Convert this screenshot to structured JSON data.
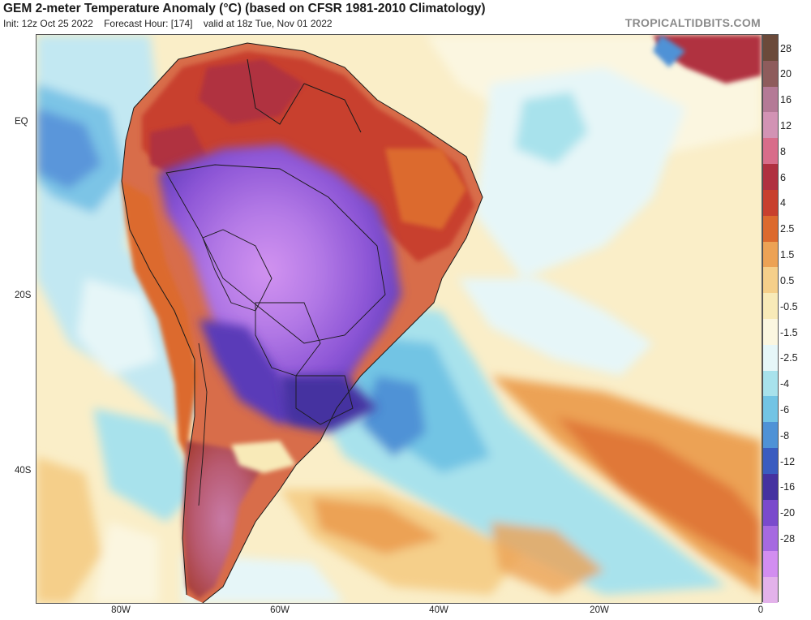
{
  "header": {
    "title": "GEM 2-meter Temperature Anomaly (°C) (based on CFSR 1981-2010 Climatology)",
    "init": "Init: 12z Oct 25 2022",
    "forecast_hour": "Forecast Hour: [174]",
    "valid": "valid at 18z Tue, Nov 01 2022",
    "credit": "TROPICALTIDBITS.COM"
  },
  "map": {
    "lat_labels": [
      "EQ",
      "20S",
      "40S"
    ],
    "lon_labels": [
      "80W",
      "60W",
      "40W",
      "20W",
      "0"
    ]
  },
  "colorbar": {
    "labels": [
      "28",
      "20",
      "16",
      "12",
      "8",
      "6",
      "4",
      "2.5",
      "1.5",
      "0.5",
      "-0.5",
      "-1.5",
      "-2.5",
      "-4",
      "-6",
      "-8",
      "-12",
      "-16",
      "-20",
      "-28"
    ],
    "colors": [
      "#6b4a3a",
      "#8e5c5c",
      "#b47a96",
      "#d293b4",
      "#d86d8a",
      "#b03040",
      "#c8402e",
      "#dc6a2e",
      "#eca255",
      "#f5cf8a",
      "#f8eab8",
      "#fbf6e0",
      "#e6f6f8",
      "#a8e2ec",
      "#72c4e4",
      "#4f92d6",
      "#3a5cc0",
      "#4532a0",
      "#7a4acc",
      "#a66ae0",
      "#d28ef0",
      "#e3b2ea"
    ]
  }
}
